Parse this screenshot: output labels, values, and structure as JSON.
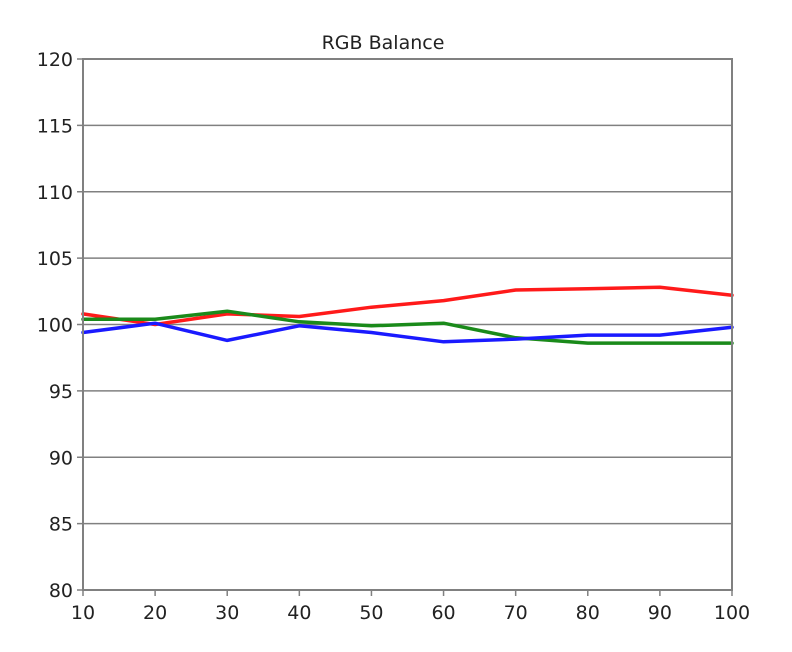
{
  "chart_data": {
    "type": "line",
    "title": "RGB Balance",
    "xlabel": "",
    "ylabel": "",
    "x": [
      10,
      20,
      30,
      40,
      50,
      60,
      70,
      80,
      90,
      100
    ],
    "xlim": [
      10,
      100
    ],
    "ylim": [
      80,
      120
    ],
    "xticks": [
      10,
      20,
      30,
      40,
      50,
      60,
      70,
      80,
      90,
      100
    ],
    "yticks": [
      80,
      85,
      90,
      95,
      100,
      105,
      110,
      115,
      120
    ],
    "grid": true,
    "legend": "none",
    "series": [
      {
        "color": "#ff1a1a",
        "values": [
          100.8,
          100.0,
          100.8,
          100.6,
          101.3,
          101.8,
          102.6,
          102.7,
          102.8,
          102.2
        ]
      },
      {
        "color": "#1a8a1a",
        "values": [
          100.4,
          100.4,
          101.0,
          100.2,
          99.9,
          100.1,
          99.0,
          98.6,
          98.6,
          98.6
        ]
      },
      {
        "color": "#1a1aff",
        "values": [
          99.4,
          100.1,
          98.8,
          99.9,
          99.4,
          98.7,
          98.9,
          99.2,
          99.2,
          99.8
        ]
      }
    ]
  }
}
